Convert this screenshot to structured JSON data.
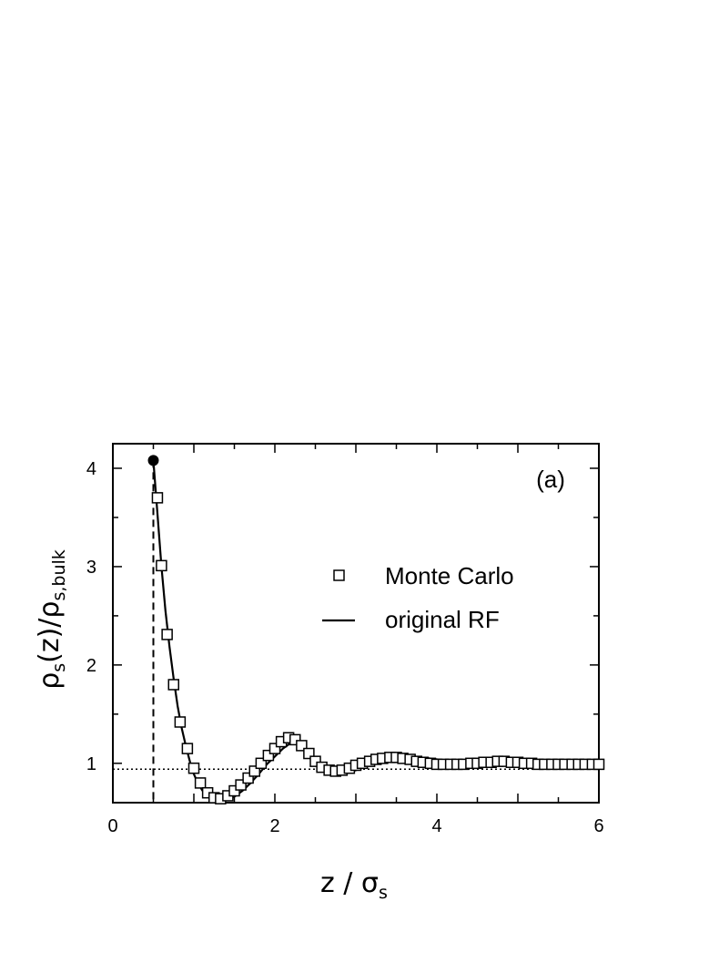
{
  "chart_data": {
    "type": "line",
    "panel_label": "(a)",
    "xlabel": "z / σs",
    "ylabel": "ρs(z)/ρs,bulk",
    "xlabel_parts": {
      "main": "z / σ",
      "sub": "s"
    },
    "ylabel_parts": {
      "rho1": "ρ",
      "sub1": "s",
      "mid": "(z)/ρ",
      "sub2": "s,bulk"
    },
    "xlim": [
      0,
      6
    ],
    "ylim": [
      0.6,
      4.25
    ],
    "xticks": [
      0,
      2,
      4,
      6
    ],
    "yticks": [
      1,
      2,
      3,
      4
    ],
    "contact_point": {
      "x": 0.5,
      "y": 4.08
    },
    "contact_line_x": 0.5,
    "bulk_reference_y": 0.94,
    "legend_position": "center-right",
    "series": [
      {
        "name": "Monte Carlo",
        "marker": "open-square",
        "x": [
          0.55,
          0.6,
          0.67,
          0.75,
          0.83,
          0.92,
          1.0,
          1.08,
          1.17,
          1.25,
          1.33,
          1.42,
          1.5,
          1.58,
          1.67,
          1.75,
          1.83,
          1.92,
          2.0,
          2.08,
          2.17,
          2.25,
          2.33,
          2.42,
          2.5,
          2.58,
          2.67,
          2.75,
          2.83,
          2.92,
          3.0,
          3.08,
          3.17,
          3.25,
          3.33,
          3.42,
          3.5,
          3.58,
          3.67,
          3.75,
          3.83,
          3.92,
          4.0,
          4.08,
          4.17,
          4.25,
          4.33,
          4.42,
          4.5,
          4.58,
          4.67,
          4.75,
          4.83,
          4.92,
          5.0,
          5.08,
          5.17,
          5.25,
          5.33,
          5.42,
          5.5,
          5.58,
          5.67,
          5.75,
          5.83,
          5.92,
          6.0
        ],
        "y": [
          3.7,
          3.01,
          2.31,
          1.8,
          1.42,
          1.15,
          0.95,
          0.8,
          0.7,
          0.65,
          0.64,
          0.67,
          0.72,
          0.78,
          0.85,
          0.92,
          1.0,
          1.08,
          1.15,
          1.22,
          1.26,
          1.24,
          1.18,
          1.1,
          1.02,
          0.96,
          0.93,
          0.92,
          0.93,
          0.95,
          0.98,
          1.0,
          1.02,
          1.04,
          1.05,
          1.06,
          1.06,
          1.05,
          1.04,
          1.02,
          1.01,
          1.0,
          0.99,
          0.99,
          0.99,
          0.99,
          0.99,
          1.0,
          1.0,
          1.01,
          1.01,
          1.02,
          1.02,
          1.01,
          1.01,
          1.0,
          1.0,
          0.99,
          0.99,
          0.99,
          0.99,
          0.99,
          0.99,
          0.99,
          0.99,
          0.99,
          0.99
        ]
      },
      {
        "name": "original RF",
        "style": "solid-line",
        "x": [
          0.5,
          0.55,
          0.6,
          0.65,
          0.7,
          0.75,
          0.8,
          0.85,
          0.9,
          0.95,
          1.0,
          1.05,
          1.1,
          1.15,
          1.2,
          1.25,
          1.3,
          1.35,
          1.4,
          1.5,
          1.6,
          1.7,
          1.8,
          1.9,
          2.0,
          2.1,
          2.2,
          2.25,
          2.3,
          2.4,
          2.5,
          2.6,
          2.7,
          2.8,
          2.9,
          3.0,
          3.1,
          3.2,
          3.3,
          3.4,
          3.5,
          3.6,
          3.7,
          3.8,
          3.9,
          4.0,
          4.2,
          4.4,
          4.6,
          4.8,
          5.0,
          5.2,
          5.4,
          5.6,
          5.8,
          6.0
        ],
        "y": [
          4.08,
          3.55,
          3.0,
          2.55,
          2.18,
          1.86,
          1.58,
          1.36,
          1.18,
          1.02,
          0.89,
          0.8,
          0.73,
          0.68,
          0.65,
          0.63,
          0.62,
          0.62,
          0.63,
          0.66,
          0.72,
          0.8,
          0.89,
          0.99,
          1.07,
          1.15,
          1.21,
          1.22,
          1.2,
          1.12,
          1.03,
          0.97,
          0.93,
          0.91,
          0.91,
          0.93,
          0.96,
          0.99,
          1.01,
          1.03,
          1.04,
          1.05,
          1.05,
          1.05,
          1.05,
          1.04,
          1.02,
          1.0,
          0.99,
          0.99,
          1.0,
          1.01,
          1.01,
          1.01,
          1.0,
          0.99
        ]
      }
    ]
  }
}
